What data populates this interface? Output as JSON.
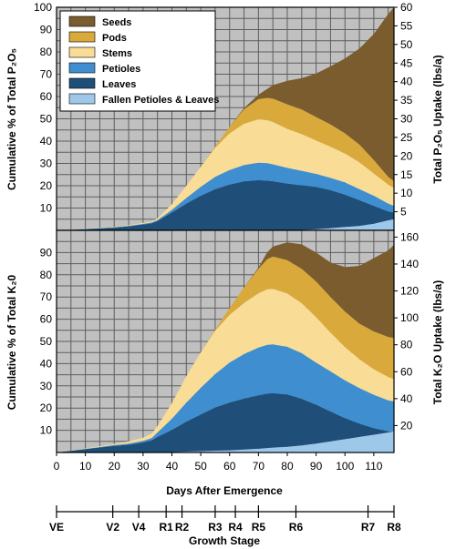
{
  "chart_data": [
    {
      "type": "area",
      "stacked": true,
      "ylabel": "Cumulative % of Total P₂O₅",
      "y2label": "Total P₂O₅ Uptake (lbs/a)",
      "ylim": [
        0,
        100
      ],
      "y2lim": [
        0,
        60
      ],
      "yticks": [
        10,
        20,
        30,
        40,
        50,
        60,
        70,
        80,
        90,
        100
      ],
      "y2ticks": [
        5,
        10,
        15,
        20,
        25,
        30,
        35,
        40,
        45,
        50,
        55,
        60
      ],
      "xlim": [
        0,
        117
      ],
      "x": [
        0,
        10,
        20,
        25,
        30,
        33,
        35,
        40,
        45,
        50,
        55,
        60,
        65,
        70,
        73,
        75,
        80,
        85,
        90,
        95,
        100,
        105,
        110,
        115,
        117
      ],
      "series": [
        {
          "name": "Fallen Petioles & Leaves",
          "color": "#9dc8ea",
          "values": [
            0,
            0,
            0,
            0,
            0,
            0,
            0,
            0,
            0,
            0,
            0,
            0,
            0,
            0,
            0,
            0,
            0,
            0.2,
            0.5,
            1,
            1.5,
            2,
            3,
            4.5,
            5
          ]
        },
        {
          "name": "Leaves",
          "color": "#1f4e79",
          "values": [
            0,
            0.5,
            1.2,
            1.8,
            2.6,
            3.2,
            4.2,
            8,
            12,
            15.5,
            18.5,
            20.5,
            22,
            22.5,
            22.3,
            22,
            21,
            20,
            19,
            17,
            14.5,
            11.5,
            8,
            4,
            3
          ]
        },
        {
          "name": "Petioles",
          "color": "#3e8ed0",
          "values": [
            0,
            0.1,
            0.2,
            0.2,
            0.3,
            0.3,
            0.4,
            1.2,
            2.5,
            4,
            5.5,
            6.5,
            7.3,
            7.8,
            7.8,
            7.6,
            7,
            6.5,
            5.8,
            5.5,
            5.5,
            5,
            4.5,
            3.5,
            3
          ]
        },
        {
          "name": "Stems",
          "color": "#f9dc96",
          "values": [
            0,
            0.1,
            0.2,
            0.3,
            0.4,
            0.5,
            0.8,
            2.5,
            5.5,
            9,
            13,
            16.5,
            18.5,
            19.5,
            19.3,
            19,
            17.5,
            16.5,
            15,
            14,
            13,
            12,
            10,
            8.5,
            8
          ]
        },
        {
          "name": "Pods",
          "color": "#d9a93c",
          "values": [
            0,
            0,
            0,
            0,
            0,
            0,
            0,
            0,
            0,
            0,
            0.5,
            3,
            6.5,
            9,
            10,
            10.5,
            11,
            11,
            10.5,
            10,
            9,
            8,
            6,
            3.5,
            3
          ]
        },
        {
          "name": "Seeds",
          "color": "#7a5c2e",
          "values": [
            0,
            0,
            0,
            0,
            0,
            0,
            0,
            0,
            0,
            0,
            0,
            0,
            0.5,
            2,
            4,
            6,
            10.5,
            14,
            19.5,
            26,
            33.5,
            43,
            56.5,
            73,
            78
          ]
        }
      ]
    },
    {
      "type": "area",
      "stacked": true,
      "xlabel": "Days After Emergence",
      "ylabel": "Cumulative % of Total K₂0",
      "y2label": "Total K₂O Uptake (lbs/a)",
      "ylim": [
        0,
        100
      ],
      "y2lim": [
        0,
        165
      ],
      "yticks": [
        10,
        20,
        30,
        40,
        50,
        60,
        70,
        80,
        90
      ],
      "y2ticks": [
        20,
        40,
        60,
        80,
        100,
        120,
        140,
        160
      ],
      "xlim": [
        0,
        117
      ],
      "xticks": [
        0,
        10,
        20,
        30,
        40,
        50,
        60,
        70,
        80,
        90,
        100,
        110
      ],
      "x": [
        0,
        10,
        20,
        25,
        30,
        33,
        35,
        40,
        45,
        50,
        55,
        60,
        65,
        70,
        73,
        75,
        80,
        85,
        90,
        95,
        100,
        105,
        110,
        115,
        117
      ],
      "series": [
        {
          "name": "Fallen Petioles & Leaves",
          "color": "#9dc8ea",
          "values": [
            0,
            0,
            0,
            0,
            0,
            0,
            0,
            0.2,
            0.4,
            0.6,
            0.8,
            1,
            1.3,
            1.7,
            2,
            2.2,
            2.6,
            3.2,
            4,
            5,
            6,
            7,
            8,
            9,
            9.5
          ]
        },
        {
          "name": "Leaves",
          "color": "#1f4e79",
          "values": [
            0,
            1.5,
            3,
            3.5,
            4.5,
            5.5,
            7,
            10,
            13.5,
            16.5,
            19.5,
            21.5,
            23,
            24,
            24.5,
            24.5,
            23.5,
            21,
            17.5,
            13.5,
            9.5,
            6,
            3,
            0.5,
            0
          ]
        },
        {
          "name": "Petioles",
          "color": "#3e8ed0",
          "values": [
            0,
            0.1,
            0.3,
            0.5,
            0.7,
            1,
            2,
            5,
            8.5,
            12,
            15,
            18,
            20,
            21.5,
            22,
            22,
            21.5,
            20.5,
            19,
            18,
            17,
            16,
            15,
            14,
            13.5
          ]
        },
        {
          "name": "Stems",
          "color": "#f9dc96",
          "values": [
            0,
            0.2,
            0.5,
            1,
            1.5,
            2,
            3,
            7,
            12,
            16,
            19.5,
            21.5,
            23,
            24.5,
            25,
            25,
            24,
            22.5,
            20.5,
            17.5,
            15,
            13,
            11.5,
            10.5,
            10
          ]
        },
        {
          "name": "Pods",
          "color": "#d9a93c",
          "values": [
            0,
            0,
            0,
            0,
            0,
            0,
            0,
            0,
            0,
            0,
            0.5,
            3,
            7,
            11,
            13.5,
            14.5,
            15,
            15.5,
            16,
            16,
            16,
            16,
            17,
            18,
            18.5
          ]
        },
        {
          "name": "Seeds",
          "color": "#7a5c2e",
          "values": [
            0,
            0,
            0,
            0,
            0,
            0,
            0,
            0,
            0,
            0,
            0,
            0,
            0,
            0.5,
            3,
            4.5,
            8,
            11,
            13,
            15.5,
            20,
            26,
            33,
            39,
            42
          ]
        }
      ]
    }
  ],
  "legend": {
    "placement": "top-left",
    "entries": [
      "Seeds",
      "Pods",
      "Stems",
      "Petioles",
      "Leaves",
      "Fallen Petioles & Leaves"
    ],
    "colors": [
      "#7a5c2e",
      "#d9a93c",
      "#f9dc96",
      "#3e8ed0",
      "#1f4e79",
      "#9dc8ea"
    ]
  },
  "growth_stage": {
    "title": "Growth Stage",
    "stages": [
      {
        "label": "VE",
        "day": 0
      },
      {
        "label": "V2",
        "day": 19.5
      },
      {
        "label": "V4",
        "day": 28.5
      },
      {
        "label": "R1",
        "day": 38
      },
      {
        "label": "R2",
        "day": 43.5
      },
      {
        "label": "R3",
        "day": 55
      },
      {
        "label": "R4",
        "day": 62
      },
      {
        "label": "R5",
        "day": 70
      },
      {
        "label": "R6",
        "day": 83
      },
      {
        "label": "R7",
        "day": 108
      },
      {
        "label": "R8",
        "day": 117
      }
    ]
  },
  "colors": {
    "plot_bg": "#c0c0c0",
    "grid": "#5e5e5e"
  }
}
